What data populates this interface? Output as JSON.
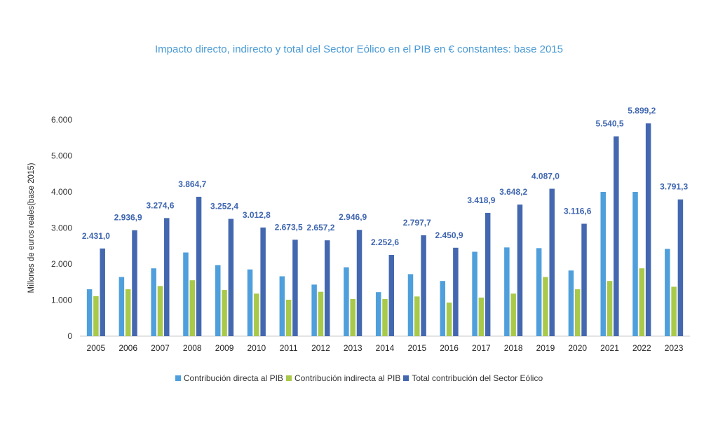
{
  "chart_data": {
    "type": "bar",
    "title": "Impacto directo, indirecto y total del Sector Eólico en el PIB en € constantes: base 2015",
    "ylabel": "Millones de euros reales(base 2015)",
    "xlabel": "",
    "ylim": [
      0,
      6000
    ],
    "yticks": [
      "0",
      "1.000",
      "2.000",
      "3.000",
      "4.000",
      "5.000",
      "6.000"
    ],
    "categories": [
      "2005",
      "2006",
      "2007",
      "2008",
      "2009",
      "2010",
      "2011",
      "2012",
      "2013",
      "2014",
      "2015",
      "2016",
      "2017",
      "2018",
      "2019",
      "2020",
      "2021",
      "2022",
      "2023"
    ],
    "series": [
      {
        "name": "Contribución directa al PIB",
        "color": "#4f9fdc",
        "values": [
          1300,
          1640,
          1880,
          2320,
          1970,
          1850,
          1660,
          1430,
          1910,
          1220,
          1720,
          1530,
          2340,
          2460,
          2440,
          1820,
          4000,
          4000,
          2420
        ]
      },
      {
        "name": "Contribución indirecta al PIB",
        "color": "#a9c94a",
        "values": [
          1110,
          1300,
          1390,
          1550,
          1280,
          1180,
          1010,
          1230,
          1030,
          1030,
          1100,
          930,
          1070,
          1180,
          1640,
          1300,
          1530,
          1880,
          1370
        ]
      },
      {
        "name": "Total contribución del Sector Eólico",
        "color": "#4468b0",
        "values": [
          2431.0,
          2936.9,
          3274.6,
          3864.7,
          3252.4,
          3012.8,
          2673.5,
          2657.2,
          2946.9,
          2252.6,
          2797.7,
          2450.9,
          3418.9,
          3648.2,
          4087.0,
          3116.6,
          5540.5,
          5899.2,
          3791.3
        ]
      }
    ],
    "data_labels": [
      "2.431,0",
      "2.936,9",
      "3.274,6",
      "3.864,7",
      "3.252,4",
      "3.012,8",
      "2.673,5",
      "2.657,2",
      "2.946,9",
      "2.252,6",
      "2.797,7",
      "2.450,9",
      "3.418,9",
      "3.648,2",
      "4.087,0",
      "3.116,6",
      "5.540,5",
      "5.899,2",
      "3.791,3"
    ],
    "grid": false,
    "legend_position": "bottom"
  }
}
